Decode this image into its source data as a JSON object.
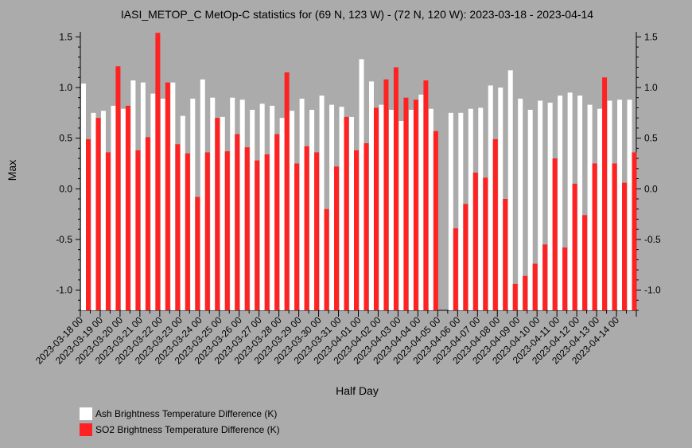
{
  "chart_data": {
    "type": "bar",
    "title": "IASI_METOP_C MetOp-C statistics for (69 N, 123 W) - (72 N, 120 W): 2023-03-18 - 2023-04-14",
    "xlabel": "Half Day",
    "ylabel": "Max",
    "ylim": [
      -1.2,
      1.55
    ],
    "yticks": [
      1.5,
      1.0,
      0.5,
      0.0,
      -0.5,
      -1.0
    ],
    "ytick_labels": [
      "1.5",
      "1.0",
      "0.5",
      "0.0",
      "-0.5",
      "-1.0"
    ],
    "xtick_labels": [
      "2023-03-18 00",
      "2023-03-19 00",
      "2023-03-20 00",
      "2023-03-21 00",
      "2023-03-22 00",
      "2023-03-23 00",
      "2023-03-24 00",
      "2023-03-25 00",
      "2023-03-26 00",
      "2023-03-27 00",
      "2023-03-28 00",
      "2023-03-29 00",
      "2023-03-30 00",
      "2023-03-31 00",
      "2023-04-01 00",
      "2023-04-02 00",
      "2023-04-03 00",
      "2023-04-04 00",
      "2023-04-05 00",
      "2023-04-06 00",
      "2023-04-07 00",
      "2023-04-08 00",
      "2023-04-09 00",
      "2023-04-10 00",
      "2023-04-11 00",
      "2023-04-12 00",
      "2023-04-13 00",
      "2023-04-14 00"
    ],
    "grid": false,
    "legend_placement": "bottom-left",
    "series": [
      {
        "name": "Ash Brightness Temperature Difference (K)",
        "color": "#ffffff",
        "values": [
          1.04,
          0.75,
          0.77,
          0.82,
          0.79,
          1.07,
          1.05,
          0.94,
          0.89,
          1.05,
          0.72,
          0.89,
          1.08,
          0.9,
          0.71,
          0.9,
          0.88,
          0.78,
          0.84,
          0.82,
          0.7,
          0.77,
          0.89,
          0.78,
          0.92,
          0.83,
          0.81,
          0.71,
          1.28,
          1.06,
          0.83,
          0.78,
          0.67,
          0.78,
          0.93,
          0.79,
          null,
          0.75,
          0.75,
          0.79,
          0.8,
          1.02,
          1.0,
          1.17,
          0.89,
          0.78,
          0.87,
          0.85,
          0.92,
          0.95,
          0.92,
          0.83,
          0.79,
          0.87,
          0.88,
          0.88
        ]
      },
      {
        "name": "SO2 Brightness Temperature Difference (K)",
        "color": "#ff2222",
        "values": [
          0.49,
          0.7,
          0.36,
          1.21,
          0.82,
          0.38,
          0.51,
          1.54,
          1.05,
          0.44,
          0.35,
          -0.08,
          0.36,
          0.7,
          0.37,
          0.54,
          0.41,
          0.28,
          0.34,
          0.54,
          1.15,
          0.25,
          0.42,
          0.36,
          -0.2,
          0.22,
          0.71,
          0.38,
          0.45,
          0.8,
          1.08,
          1.2,
          0.9,
          0.88,
          1.07,
          0.57,
          null,
          -0.39,
          -0.15,
          0.16,
          0.11,
          0.49,
          -0.1,
          -0.94,
          -0.86,
          -0.74,
          -0.55,
          0.3,
          -0.58,
          0.05,
          -0.26,
          0.25,
          1.1,
          0.25,
          0.06,
          0.36
        ]
      }
    ]
  }
}
